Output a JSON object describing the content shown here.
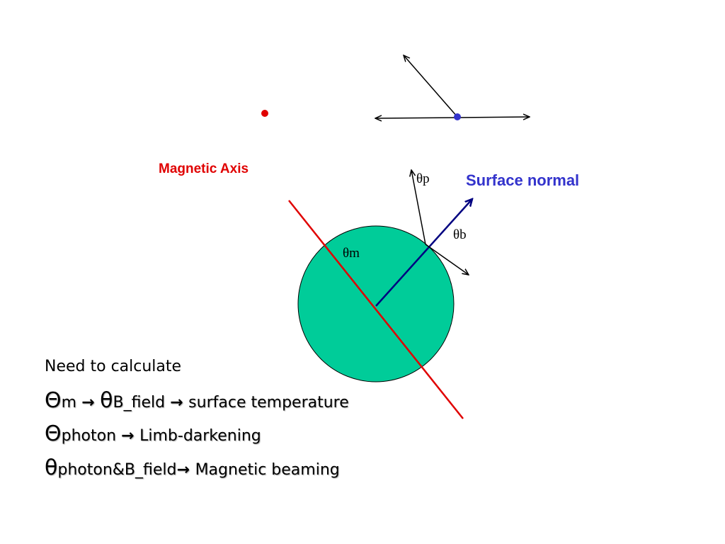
{
  "labels": {
    "magnetic_axis": "Magnetic Axis",
    "theta_p": "θp",
    "surface_normal": "Surface normal",
    "theta_b": "θb",
    "theta_m": "θm"
  },
  "text": {
    "heading": "Need to calculate",
    "lines": [
      {
        "parts": [
          "Θ",
          "m ",
          "→ ",
          "θ",
          "B_field ",
          "→ ",
          "surface temperature"
        ]
      },
      {
        "parts": [
          "Θ",
          "photon ",
          "→ ",
          "Limb-darkening"
        ]
      },
      {
        "parts": [
          "θ",
          "photon&B_field",
          "→ ",
          "Magnetic beaming"
        ]
      }
    ]
  }
}
